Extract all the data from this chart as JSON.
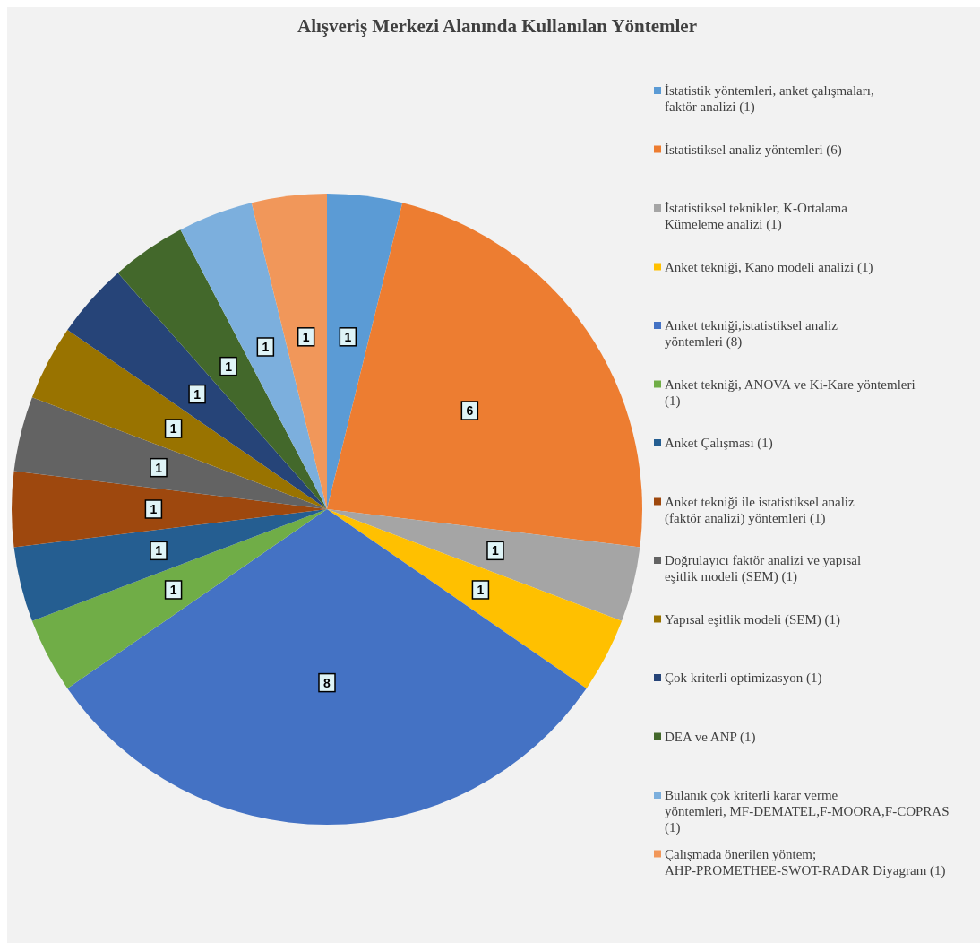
{
  "chart_data": {
    "type": "pie",
    "title": "Alışveriş Merkezi Alanında Kullanılan Yöntemler",
    "categories": [
      "İstatistik yöntemleri, anket çalışmaları, faktör analizi (1)",
      "İstatistiksel analiz yöntemleri (6)",
      "İstatistiksel teknikler, K-Ortalama Kümeleme analizi (1)",
      "Anket tekniği, Kano modeli analizi (1)",
      "Anket tekniği,istatistiksel analiz yöntemleri (8)",
      "Anket tekniği, ANOVA ve Ki-Kare yöntemleri (1)",
      "Anket Çalışması (1)",
      "Anket tekniği ile istatistiksel analiz (faktör analizi) yöntemleri (1)",
      "Doğrulayıcı faktör analizi ve yapısal eşitlik modeli (SEM) (1)",
      "Yapısal eşitlik modeli (SEM) (1)",
      "Çok kriterli optimizasyon (1)",
      "DEA ve ANP (1)",
      "Bulanık çok kriterli karar verme yöntemleri, MF-DEMATEL,F-MOORA,F-COPRAS (1)",
      "Çalışmada önerilen yöntem; AHP-PROMETHEE-SWOT-RADAR Diyagram (1)"
    ],
    "values": [
      1,
      6,
      1,
      1,
      8,
      1,
      1,
      1,
      1,
      1,
      1,
      1,
      1,
      1
    ],
    "colors": [
      "#5b9bd5",
      "#ed7d31",
      "#a5a5a5",
      "#ffc000",
      "#4472c4",
      "#70ad47",
      "#255e91",
      "#9e480e",
      "#636363",
      "#997300",
      "#264478",
      "#43682b",
      "#7cafdd",
      "#f1975a"
    ],
    "data_labels": true,
    "legend": "right"
  }
}
